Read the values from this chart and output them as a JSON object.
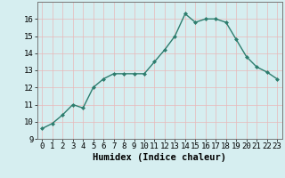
{
  "x": [
    0,
    1,
    2,
    3,
    4,
    5,
    6,
    7,
    8,
    9,
    10,
    11,
    12,
    13,
    14,
    15,
    16,
    17,
    18,
    19,
    20,
    21,
    22,
    23
  ],
  "y": [
    9.6,
    9.9,
    10.4,
    11.0,
    10.8,
    12.0,
    12.5,
    12.8,
    12.8,
    12.8,
    12.8,
    13.5,
    14.2,
    15.0,
    16.3,
    15.8,
    16.0,
    16.0,
    15.8,
    14.8,
    13.8,
    13.2,
    12.9,
    12.5
  ],
  "line_color": "#2d7d6e",
  "marker": "D",
  "marker_size": 2.0,
  "bg_color": "#d6eef0",
  "grid_color": "#e8b8b8",
  "xlabel": "Humidex (Indice chaleur)",
  "xlim": [
    -0.5,
    23.5
  ],
  "ylim": [
    9,
    17
  ],
  "yticks": [
    9,
    10,
    11,
    12,
    13,
    14,
    15,
    16
  ],
  "xticks": [
    0,
    1,
    2,
    3,
    4,
    5,
    6,
    7,
    8,
    9,
    10,
    11,
    12,
    13,
    14,
    15,
    16,
    17,
    18,
    19,
    20,
    21,
    22,
    23
  ],
  "xlabel_fontsize": 7.5,
  "tick_fontsize": 6.5,
  "linewidth": 1.0
}
